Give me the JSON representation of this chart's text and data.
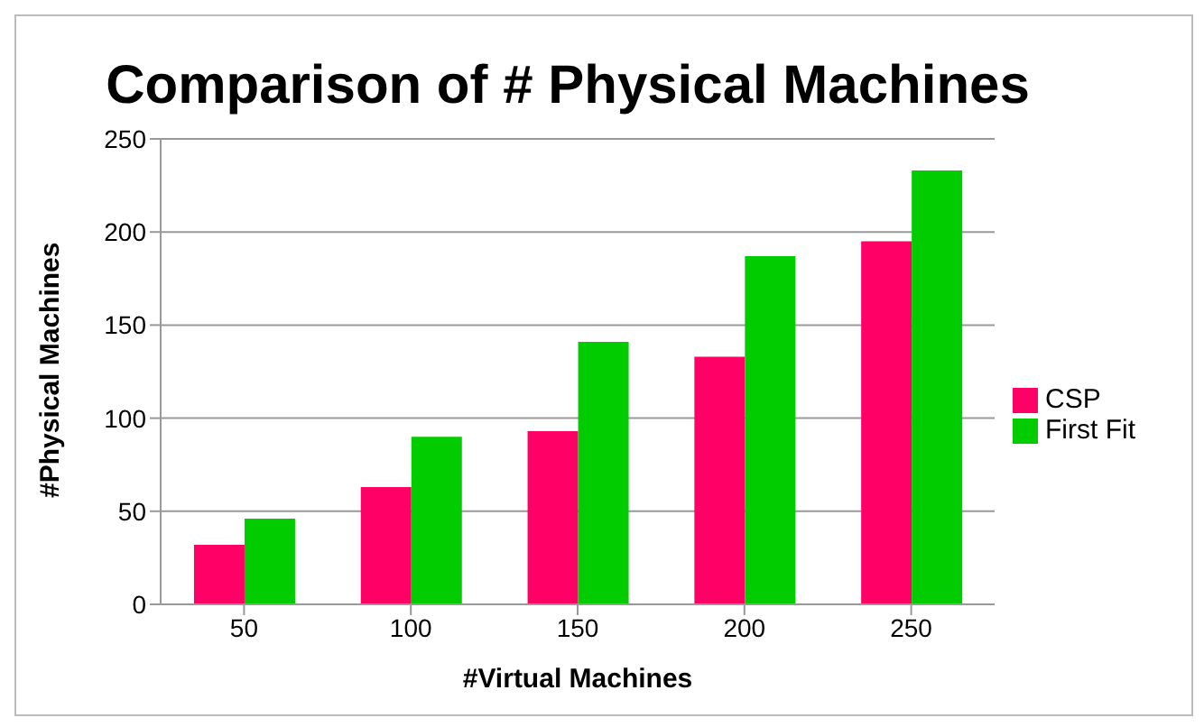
{
  "chart_data": {
    "type": "bar",
    "title": "Comparison of # Physical Machines",
    "xlabel": "#Virtual Machines",
    "ylabel": "#Physical Machines",
    "categories": [
      "50",
      "100",
      "150",
      "200",
      "250"
    ],
    "series": [
      {
        "name": "CSP",
        "color": "#ff0066",
        "values": [
          32,
          63,
          93,
          133,
          195
        ]
      },
      {
        "name": "First Fit",
        "color": "#00cc00",
        "values": [
          46,
          90,
          141,
          187,
          233
        ]
      }
    ],
    "ylim": [
      0,
      250
    ],
    "yticks": [
      0,
      50,
      100,
      150,
      200,
      250
    ],
    "grid": "y",
    "legend": "right"
  }
}
